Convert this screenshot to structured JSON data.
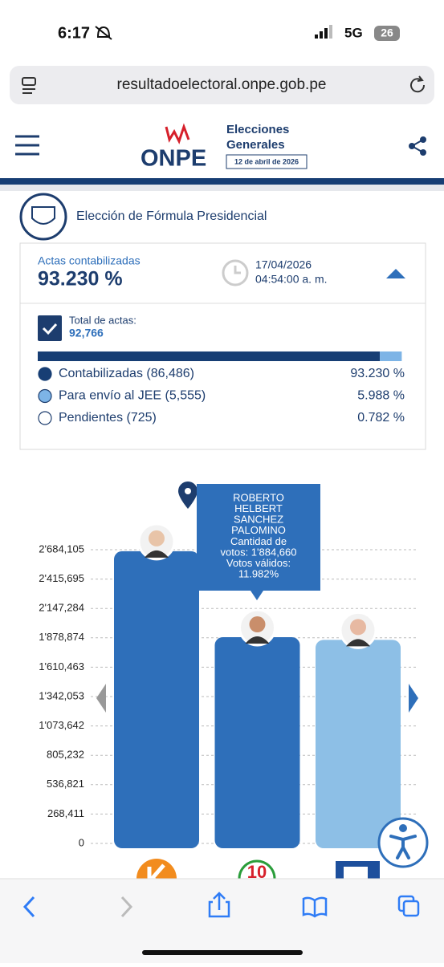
{
  "status": {
    "time": "6:17",
    "network": "5G",
    "battery": "26"
  },
  "url": "resultadoelectoral.onpe.gob.pe",
  "header": {
    "logo": "ONPE",
    "title_1": "Elecciones",
    "title_2": "Generales",
    "date": "12 de abril de 2026"
  },
  "section_title": "Elección de Fórmula Presidencial",
  "summary": {
    "label": "Actas contabilizadas",
    "value": "93.230 %",
    "date": "17/04/2026",
    "time": "04:54:00 a. m."
  },
  "totals": {
    "label": "Total de actas:",
    "value": "92,766"
  },
  "progress": [
    {
      "label": "Contabilizadas (86,486)",
      "value": 93.23,
      "value_label": "93.230 %",
      "color": "#173e74"
    },
    {
      "label": "Para envío al JEE (5,555)",
      "value": 5.988,
      "value_label": "5.988 %",
      "color": "#7db4e6"
    },
    {
      "label": "Pendientes (725)",
      "value": 0.782,
      "value_label": "0.782 %",
      "color": "#ffffff"
    }
  ],
  "chart_data": {
    "type": "bar",
    "values": [
      2670000,
      1884660,
      1860000
    ],
    "colors": [
      "#2e6fba",
      "#2e6fba",
      "#8dbfe6"
    ],
    "ylim": [
      0,
      2684105
    ],
    "yticks": [
      0,
      {
        "value": 268411,
        "label": "268,411"
      },
      {
        "value": 536821,
        "label": "536,821"
      },
      {
        "value": 805232,
        "label": "805,232"
      },
      {
        "value": 1073642,
        "label": "1'073,642"
      },
      {
        "value": 1342053,
        "label": "1'342,053"
      },
      {
        "value": 1610463,
        "label": "1'610,463"
      },
      {
        "value": 1878874,
        "label": "1'878,874"
      },
      {
        "value": 2147284,
        "label": "2'147,284"
      },
      {
        "value": 2415695,
        "label": "2'415,695"
      },
      {
        "value": 2684105,
        "label": "2'684,105"
      }
    ],
    "grid": true,
    "tooltip": [
      "ROBERTO",
      "HELBERT",
      "SANCHEZ",
      "PALOMINO",
      "Cantidad de",
      "votos: 1'884,660",
      "Votos válidos:",
      "11.982%"
    ]
  }
}
